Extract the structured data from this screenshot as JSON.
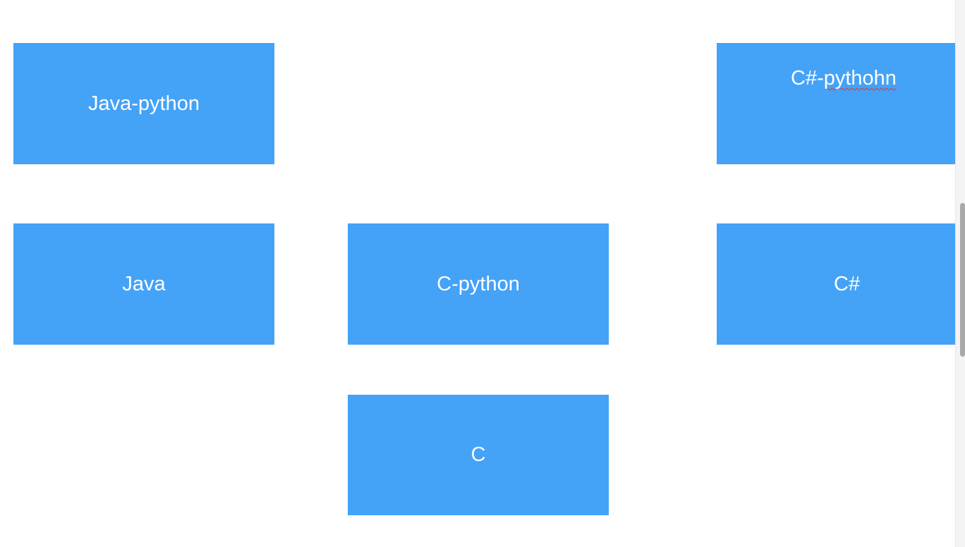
{
  "diagram": {
    "nodes": [
      {
        "id": "java-python",
        "label": "Java-python"
      },
      {
        "id": "csharp-python",
        "label_pre": "C#-",
        "label_flagged": "pythohn"
      },
      {
        "id": "java",
        "label": "Java"
      },
      {
        "id": "c-python",
        "label": "C-python"
      },
      {
        "id": "csharp",
        "label": "C#"
      },
      {
        "id": "c",
        "label": "C"
      }
    ],
    "node_color": "#44a2f7",
    "text_color": "#ffffff",
    "spellcheck_color": "#e0352b"
  }
}
